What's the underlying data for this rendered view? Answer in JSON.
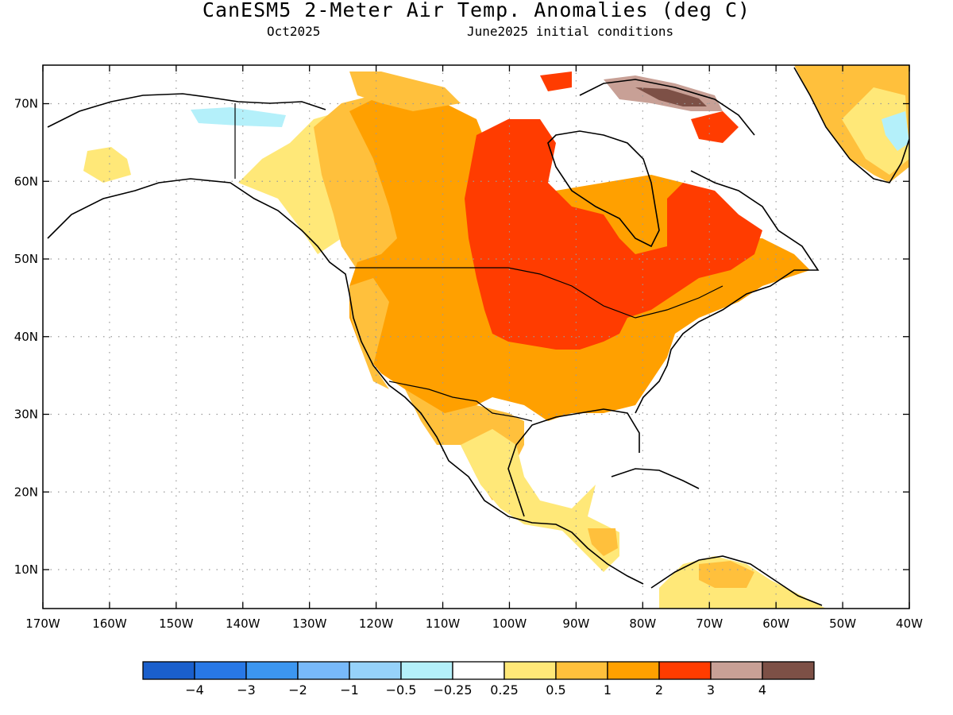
{
  "header": {
    "title": "CanESM5 2-Meter Air Temp. Anomalies (deg C)",
    "valid_month": "Oct2025",
    "init": "June2025 initial conditions"
  },
  "axes": {
    "lon_labels": [
      "170W",
      "160W",
      "150W",
      "140W",
      "130W",
      "120W",
      "110W",
      "100W",
      "90W",
      "80W",
      "70W",
      "60W",
      "50W",
      "40W"
    ],
    "lat_labels": [
      "10N",
      "20N",
      "30N",
      "40N",
      "50N",
      "60N",
      "70N"
    ]
  },
  "colorbar": {
    "colors": [
      "#1a5fcc",
      "#2878e6",
      "#3c96f0",
      "#78b9fa",
      "#96d2fa",
      "#b4f0fa",
      "#ffffff",
      "#ffe878",
      "#ffc03c",
      "#ffa000",
      "#ff3c00",
      "#c8a096",
      "#7d5046"
    ],
    "labels": [
      "−4",
      "−3",
      "−2",
      "−1",
      "−0.5",
      "−0.25",
      "0.25",
      "0.5",
      "1",
      "2",
      "3",
      "4"
    ]
  },
  "map": {
    "colors": {
      "weak": "#ffe878",
      "light": "#ffc03c",
      "mod": "#ffa000",
      "strong": "#ff3c00",
      "vstrong": "#c8a096",
      "ext": "#7d5046",
      "cool": "#b4f0fa"
    }
  }
}
